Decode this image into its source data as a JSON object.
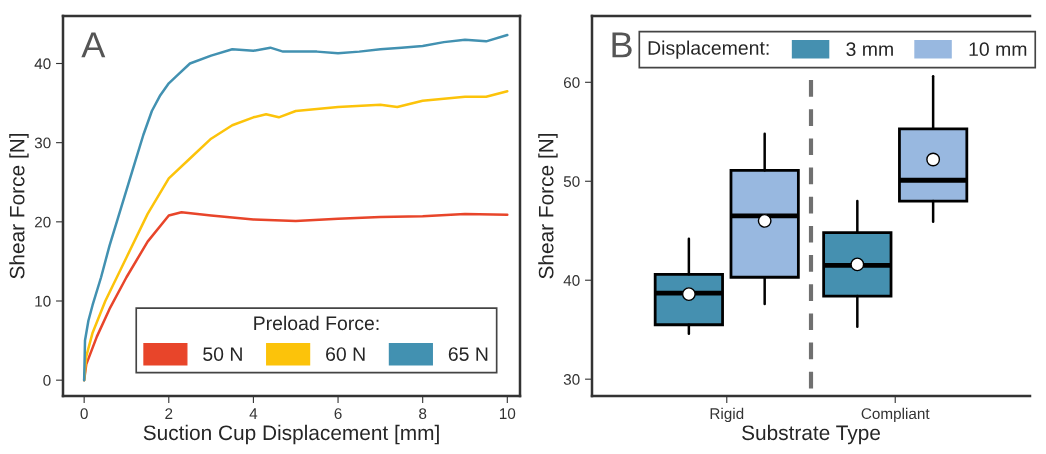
{
  "chart_data": [
    {
      "type": "line",
      "xlabel": "Suction Cup Displacement [mm]",
      "ylabel": "Shear Force [N]",
      "legend_title": "Preload Force:",
      "legend": "bottom right",
      "grid": false,
      "xlim": [
        -0.5,
        10.3
      ],
      "xticks": [
        0,
        2,
        4,
        6,
        8,
        10
      ],
      "ylim": [
        -2,
        46
      ],
      "yticks": [
        0,
        10,
        20,
        30,
        40
      ],
      "annotations": [
        "A"
      ],
      "series": [
        {
          "name": "50 N",
          "color": "#e8452a",
          "x": [
            0,
            0.05,
            0.3,
            0.6,
            1,
            1.5,
            2,
            2.3,
            3,
            4,
            5,
            6,
            7,
            8,
            9,
            10
          ],
          "values": [
            0,
            2,
            5.5,
            9,
            13,
            17.5,
            20.8,
            21.2,
            20.8,
            20.3,
            20.1,
            20.4,
            20.6,
            20.7,
            21,
            20.9
          ]
        },
        {
          "name": "60 N",
          "color": "#fcc30a",
          "x": [
            0,
            0.05,
            0.2,
            0.5,
            1,
            1.5,
            2,
            2.5,
            3,
            3.5,
            4,
            4.3,
            4.6,
            5,
            6,
            7,
            7.4,
            8,
            9,
            9.5,
            10
          ],
          "values": [
            0,
            3,
            6,
            10,
            15.5,
            21,
            25.5,
            28,
            30.5,
            32.2,
            33.2,
            33.6,
            33.2,
            34,
            34.5,
            34.8,
            34.5,
            35.3,
            35.8,
            35.8,
            36.5
          ]
        },
        {
          "name": "65 N",
          "color": "#4291b1",
          "x": [
            0,
            0.02,
            0.1,
            0.2,
            0.4,
            0.6,
            0.8,
            1,
            1.2,
            1.4,
            1.6,
            1.8,
            2,
            2.2,
            2.5,
            3,
            3.5,
            4,
            4.4,
            4.7,
            5,
            5.5,
            6,
            6.5,
            7,
            7.5,
            8,
            8.5,
            9,
            9.5,
            10
          ],
          "values": [
            0,
            5,
            7.5,
            9.5,
            13,
            17,
            20.5,
            24,
            27.5,
            31,
            34,
            36,
            37.5,
            38.5,
            40,
            41,
            41.8,
            41.6,
            42,
            41.5,
            41.5,
            41.5,
            41.3,
            41.5,
            41.8,
            42,
            42.2,
            42.7,
            43,
            42.8,
            43.6
          ]
        }
      ]
    },
    {
      "type": "box",
      "xlabel": "Substrate Type",
      "ylabel": "Shear Force [N]",
      "legend_title": "Displacement:",
      "legend": "top",
      "grid": false,
      "categories": [
        "Rigid",
        "Compliant"
      ],
      "ylim": [
        28.3,
        66.7
      ],
      "yticks": [
        30,
        40,
        50,
        60
      ],
      "annotations": [
        "B"
      ],
      "series": [
        {
          "name": "3 mm",
          "color": "#4590b0",
          "boxes": [
            {
              "low": 34.6,
              "q1": 35.5,
              "median": 38.7,
              "q3": 40.6,
              "high": 44.2,
              "mean": 38.6
            },
            {
              "low": 35.3,
              "q1": 38.4,
              "median": 41.5,
              "q3": 44.8,
              "high": 48.0,
              "mean": 41.6
            }
          ]
        },
        {
          "name": "10 mm",
          "color": "#98b8e0",
          "boxes": [
            {
              "low": 37.6,
              "q1": 40.3,
              "median": 46.5,
              "q3": 51.1,
              "high": 54.8,
              "mean": 46.0
            },
            {
              "low": 45.9,
              "q1": 48.0,
              "median": 50.1,
              "q3": 55.3,
              "high": 60.6,
              "mean": 52.2
            }
          ]
        }
      ]
    }
  ]
}
